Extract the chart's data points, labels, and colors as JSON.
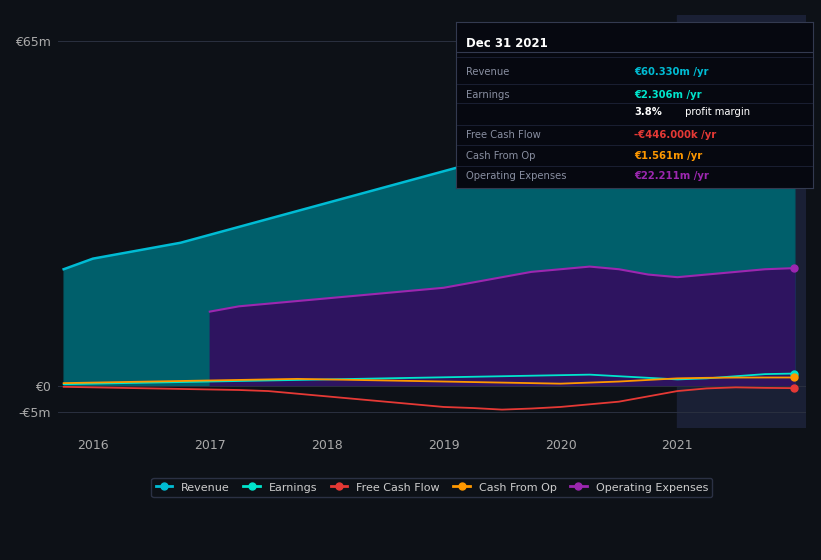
{
  "background_color": "#0d1117",
  "plot_bg_color": "#0d1117",
  "title": "Dec 31 2021",
  "grid_color": "#2a3040",
  "yticks": [
    "€65m",
    "€0",
    "-€5m"
  ],
  "ytick_vals": [
    65000000,
    0,
    -5000000
  ],
  "ylim": [
    -8000000,
    70000000
  ],
  "xlim": [
    2015.7,
    2022.1
  ],
  "xtick_labels": [
    "2016",
    "2017",
    "2018",
    "2019",
    "2020",
    "2021"
  ],
  "xtick_vals": [
    2016,
    2017,
    2018,
    2019,
    2020,
    2021
  ],
  "years": [
    2015.75,
    2016.0,
    2016.25,
    2016.5,
    2016.75,
    2017.0,
    2017.25,
    2017.5,
    2017.75,
    2018.0,
    2018.25,
    2018.5,
    2018.75,
    2019.0,
    2019.25,
    2019.5,
    2019.75,
    2020.0,
    2020.25,
    2020.5,
    2020.75,
    2021.0,
    2021.25,
    2021.5,
    2021.75,
    2022.0
  ],
  "revenue": [
    22000000,
    24000000,
    25000000,
    26000000,
    27000000,
    28500000,
    30000000,
    31500000,
    33000000,
    34500000,
    36000000,
    37500000,
    39000000,
    40500000,
    42000000,
    44000000,
    46000000,
    48500000,
    50000000,
    49000000,
    47000000,
    46000000,
    48000000,
    52000000,
    58000000,
    60330000
  ],
  "earnings": [
    300000,
    400000,
    500000,
    600000,
    700000,
    800000,
    900000,
    1000000,
    1100000,
    1200000,
    1300000,
    1400000,
    1500000,
    1600000,
    1700000,
    1800000,
    1900000,
    2000000,
    2100000,
    1800000,
    1500000,
    1200000,
    1400000,
    1800000,
    2200000,
    2306000
  ],
  "free_cash_flow": [
    -200000,
    -300000,
    -400000,
    -500000,
    -600000,
    -700000,
    -800000,
    -1000000,
    -1500000,
    -2000000,
    -2500000,
    -3000000,
    -3500000,
    -4000000,
    -4200000,
    -4500000,
    -4300000,
    -4000000,
    -3500000,
    -3000000,
    -2000000,
    -1000000,
    -500000,
    -300000,
    -400000,
    -446000
  ],
  "cash_from_op": [
    500000,
    600000,
    700000,
    800000,
    900000,
    1000000,
    1100000,
    1200000,
    1300000,
    1200000,
    1100000,
    1000000,
    900000,
    800000,
    700000,
    600000,
    500000,
    400000,
    600000,
    800000,
    1100000,
    1400000,
    1500000,
    1550000,
    1560000,
    1561000
  ],
  "operating_expenses": [
    0,
    0,
    0,
    0,
    0,
    14000000,
    15000000,
    15500000,
    16000000,
    16500000,
    17000000,
    17500000,
    18000000,
    18500000,
    19500000,
    20500000,
    21500000,
    22000000,
    22500000,
    22000000,
    21000000,
    20500000,
    21000000,
    21500000,
    22000000,
    22211000
  ],
  "revenue_color": "#00bcd4",
  "revenue_fill": "#005f6b",
  "earnings_color": "#00e5cc",
  "fcf_color": "#e53935",
  "cashop_color": "#ff9800",
  "opex_color": "#9c27b0",
  "opex_fill": "#2e1460",
  "highlight_x_start": 2021.0,
  "highlight_x_end": 2022.1,
  "highlight_color": "#1a2035",
  "legend_labels": [
    "Revenue",
    "Earnings",
    "Free Cash Flow",
    "Cash From Op",
    "Operating Expenses"
  ],
  "legend_colors": [
    "#00bcd4",
    "#00e5cc",
    "#e53935",
    "#ff9800",
    "#9c27b0"
  ],
  "table_rows": [
    {
      "label": "Revenue",
      "value": "€60.330m /yr",
      "val_color": "#00bcd4",
      "extra": null,
      "extra_color": null
    },
    {
      "label": "Earnings",
      "value": "€2.306m /yr",
      "val_color": "#00e5cc",
      "extra": null,
      "extra_color": null
    },
    {
      "label": null,
      "value": "3.8%",
      "val_color": "white",
      "extra": " profit margin",
      "extra_color": "white"
    },
    {
      "label": "Free Cash Flow",
      "value": "-€446.000k /yr",
      "val_color": "#e53935",
      "extra": null,
      "extra_color": null
    },
    {
      "label": "Cash From Op",
      "value": "€1.561m /yr",
      "val_color": "#ff9800",
      "extra": null,
      "extra_color": null
    },
    {
      "label": "Operating Expenses",
      "value": "€22.211m /yr",
      "val_color": "#9c27b0",
      "extra": null,
      "extra_color": null
    }
  ]
}
